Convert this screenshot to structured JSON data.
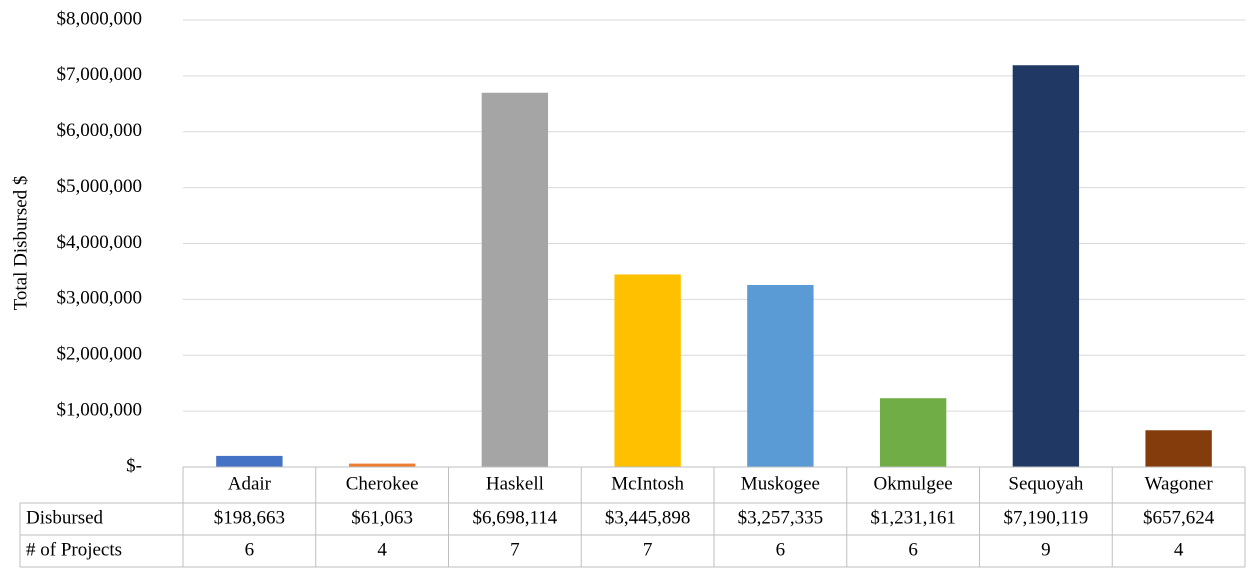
{
  "chart_data": {
    "type": "bar",
    "y_label": "Total Disbursed $",
    "categories": [
      "Adair",
      "Cherokee",
      "Haskell",
      "McIntosh",
      "Muskogee",
      "Okmulgee",
      "Sequoyah",
      "Wagoner"
    ],
    "series": [
      {
        "name": "Disbursed",
        "values": [
          198663,
          61063,
          6698114,
          3445898,
          3257335,
          1231161,
          7190119,
          657624
        ],
        "value_labels": [
          "$198,663",
          "$61,063",
          "$6,698,114",
          "$3,445,898",
          "$3,257,335",
          "$1,231,161",
          "$7,190,119",
          "$657,624"
        ],
        "colors": [
          "#4472c4",
          "#ed7d31",
          "#a5a5a5",
          "#ffc000",
          "#5b9bd5",
          "#70ad47",
          "#203864",
          "#843c0c"
        ]
      }
    ],
    "projects": {
      "name": "# of Projects",
      "values": [
        6,
        4,
        7,
        7,
        6,
        6,
        9,
        4
      ]
    },
    "ylim": [
      0,
      8000000
    ],
    "yticks": [
      {
        "value": 0,
        "label": "$-"
      },
      {
        "value": 1000000,
        "label": "$1,000,000"
      },
      {
        "value": 2000000,
        "label": "$2,000,000"
      },
      {
        "value": 3000000,
        "label": "$3,000,000"
      },
      {
        "value": 4000000,
        "label": "$4,000,000"
      },
      {
        "value": 5000000,
        "label": "$5,000,000"
      },
      {
        "value": 6000000,
        "label": "$6,000,000"
      },
      {
        "value": 7000000,
        "label": "$7,000,000"
      },
      {
        "value": 8000000,
        "label": "$8,000,000"
      }
    ],
    "grid": true
  }
}
